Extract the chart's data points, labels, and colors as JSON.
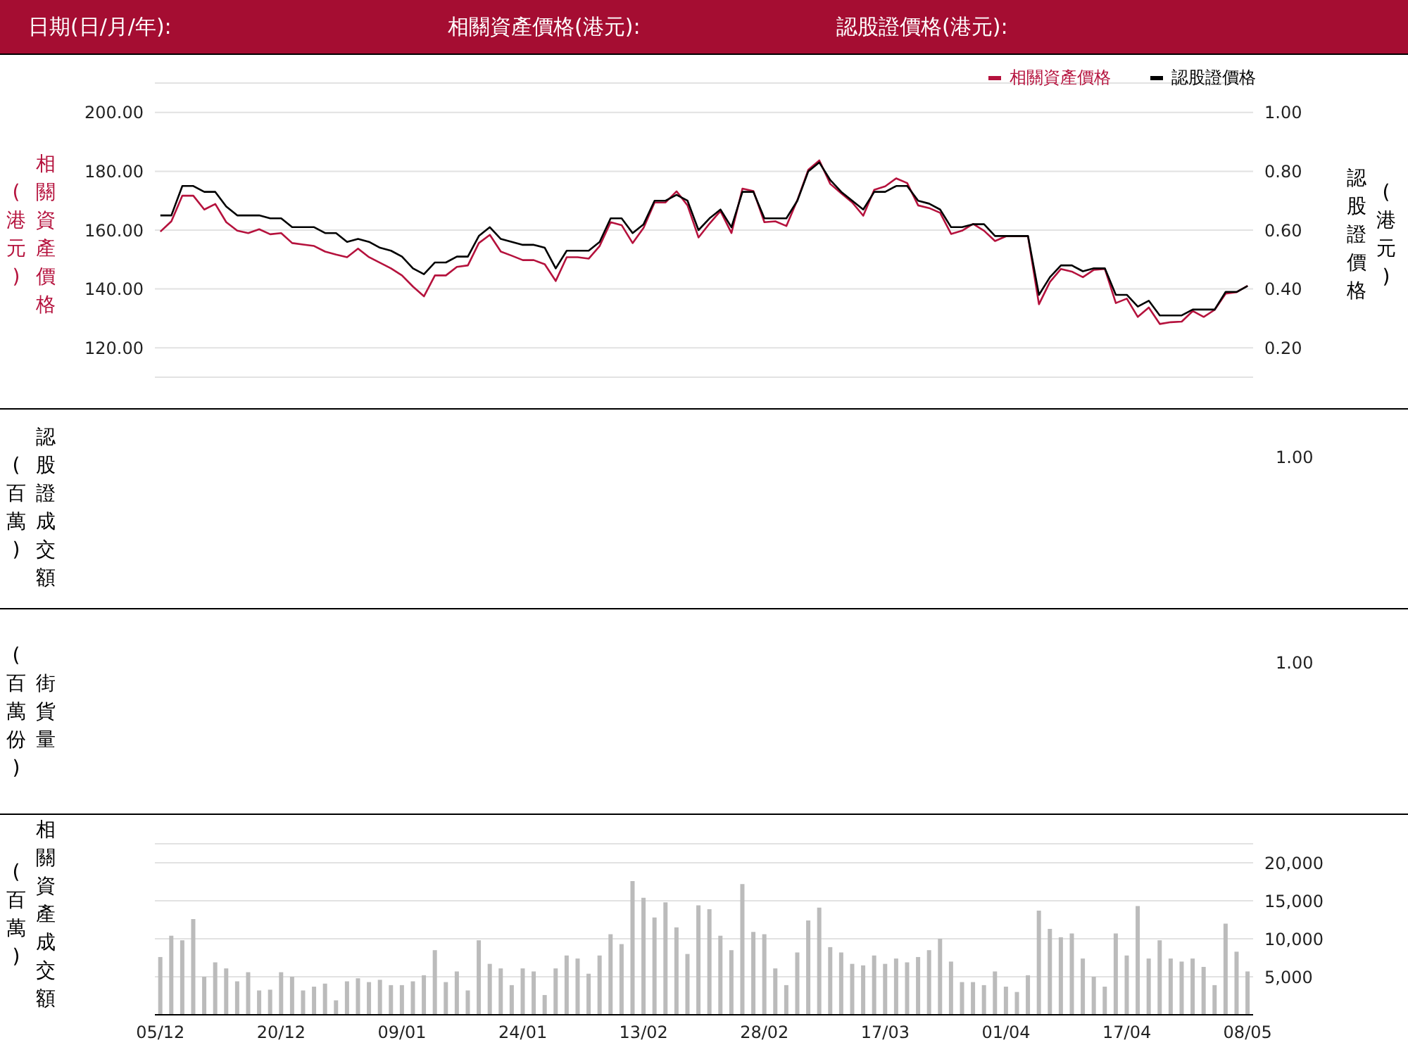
{
  "chart_data": [
    {
      "type": "line",
      "annotations": [
        "日期(日/月/年):",
        "相關資產價格(港元):",
        "認股證價格(港元):"
      ],
      "ylabel": "相關資產價格(港元)",
      "y2label": "認股證價格(港元)",
      "legend": "top right",
      "grid": "y",
      "tick_labels": "y",
      "categories": [
        null,
        null,
        null,
        null,
        null,
        null,
        null,
        null,
        null,
        null,
        null,
        null,
        null,
        null,
        null,
        null,
        null,
        null,
        null,
        null,
        null,
        null,
        null,
        null,
        null,
        null,
        null,
        null,
        null,
        null,
        null,
        null,
        null,
        null,
        null,
        null,
        null,
        null,
        null,
        null,
        null,
        null,
        null,
        null,
        null,
        null,
        null,
        null,
        null,
        null,
        null,
        null,
        null,
        null,
        null,
        null,
        null,
        null,
        null,
        null,
        null,
        null,
        null,
        null,
        null,
        null,
        null,
        null,
        null,
        null,
        null,
        null,
        null,
        null,
        null,
        null,
        null,
        null,
        null,
        null,
        null,
        null,
        null,
        null,
        null,
        null,
        null,
        null,
        null,
        null,
        null,
        null,
        null,
        null,
        null,
        null,
        null,
        null,
        null,
        null
      ],
      "ylim": [
        110,
        210
      ],
      "yticks": [
        {
          "value": 120,
          "label": "120.00"
        },
        {
          "value": 140,
          "label": "140.00"
        },
        {
          "value": 160,
          "label": "160.00"
        },
        {
          "value": 180,
          "label": "180.00"
        },
        {
          "value": 200,
          "label": "200.00"
        }
      ],
      "y2lim": [
        0.1,
        1.1
      ],
      "y2ticks": [
        {
          "value": 0.2,
          "label": "0.20"
        },
        {
          "value": 0.4,
          "label": "0.40"
        },
        {
          "value": 0.6,
          "label": "0.60"
        },
        {
          "value": 0.8,
          "label": "0.80"
        },
        {
          "value": 1,
          "label": "1.00"
        }
      ],
      "series": [
        {
          "name": "相關資產價格",
          "color": "#b5123d",
          "values": [
            159.5,
            163.0,
            171.7,
            171.7,
            167.0,
            168.9,
            162.7,
            159.8,
            159.0,
            160.3,
            158.6,
            159.0,
            155.6,
            155.1,
            154.6,
            152.7,
            151.7,
            150.8,
            153.7,
            150.8,
            148.9,
            147.0,
            144.6,
            140.8,
            137.5,
            144.6,
            144.6,
            147.5,
            148.0,
            155.6,
            158.4,
            152.7,
            151.3,
            149.8,
            149.8,
            148.4,
            142.7,
            150.8,
            150.8,
            150.3,
            154.6,
            162.7,
            161.7,
            155.6,
            160.8,
            169.4,
            169.4,
            173.2,
            168.4,
            157.5,
            162.2,
            166.5,
            159.0,
            174.1,
            173.3,
            162.7,
            163.0,
            161.4,
            170.2,
            180.5,
            183.7,
            175.7,
            172.5,
            169.4,
            164.9,
            173.7,
            174.9,
            177.6,
            176.0,
            168.4,
            167.5,
            165.9,
            158.7,
            159.8,
            162.1,
            159.8,
            156.3,
            157.9,
            157.9,
            157.9,
            134.8,
            142.4,
            146.8,
            145.9,
            144.0,
            146.5,
            146.8,
            135.2,
            136.7,
            130.5,
            133.7,
            128.1,
            128.7,
            128.9,
            132.5,
            130.5,
            132.9,
            138.4,
            138.9,
            141.1
          ]
        },
        {
          "name": "認股證價格",
          "color": "#000000",
          "axis": "y2",
          "values": [
            0.65,
            0.65,
            0.75,
            0.75,
            0.73,
            0.73,
            0.68,
            0.65,
            0.65,
            0.65,
            0.64,
            0.64,
            0.61,
            0.61,
            0.61,
            0.59,
            0.59,
            0.56,
            0.57,
            0.56,
            0.54,
            0.53,
            0.51,
            0.47,
            0.45,
            0.49,
            0.49,
            0.51,
            0.51,
            0.58,
            0.61,
            0.57,
            0.56,
            0.55,
            0.55,
            0.54,
            0.47,
            0.53,
            0.53,
            0.53,
            0.56,
            0.64,
            0.64,
            0.59,
            0.62,
            0.7,
            0.7,
            0.72,
            0.7,
            0.6,
            0.64,
            0.67,
            0.61,
            0.73,
            0.73,
            0.64,
            0.64,
            0.64,
            0.7,
            0.8,
            0.83,
            0.77,
            0.73,
            0.7,
            0.67,
            0.73,
            0.73,
            0.75,
            0.75,
            0.7,
            0.69,
            0.67,
            0.61,
            0.61,
            0.62,
            0.62,
            0.58,
            0.58,
            0.58,
            0.58,
            0.38,
            0.44,
            0.48,
            0.48,
            0.46,
            0.47,
            0.47,
            0.38,
            0.38,
            0.34,
            0.36,
            0.31,
            0.31,
            0.31,
            0.33,
            0.33,
            0.33,
            0.39,
            0.39,
            0.41
          ]
        }
      ]
    },
    {
      "type": "other",
      "ylabel": "認股證成交額(百萬)",
      "annotations": [
        "1.00"
      ]
    },
    {
      "type": "other",
      "ylabel": "街貨量(百萬份)",
      "annotations": [
        "1.00"
      ]
    },
    {
      "type": "bar",
      "ylabel": "相關資產成交額(百萬)",
      "grid": "y",
      "color": "#bbbbbb",
      "ylim": [
        0,
        22500
      ],
      "yticks": [
        {
          "value": 5000,
          "label": "5,000"
        },
        {
          "value": 10000,
          "label": "10,000"
        },
        {
          "value": 15000,
          "label": "15,000"
        },
        {
          "value": 20000,
          "label": "20,000"
        }
      ],
      "categories": [
        "05/12",
        null,
        null,
        null,
        null,
        null,
        null,
        null,
        null,
        null,
        null,
        "20/12",
        null,
        null,
        null,
        null,
        null,
        null,
        null,
        null,
        null,
        null,
        "09/01",
        null,
        null,
        null,
        null,
        null,
        null,
        null,
        null,
        null,
        null,
        "24/01",
        null,
        null,
        null,
        null,
        null,
        null,
        null,
        null,
        null,
        null,
        "13/02",
        null,
        null,
        null,
        null,
        null,
        null,
        null,
        null,
        null,
        null,
        "28/02",
        null,
        null,
        null,
        null,
        null,
        null,
        null,
        null,
        null,
        null,
        "17/03",
        null,
        null,
        null,
        null,
        null,
        null,
        null,
        null,
        null,
        null,
        "01/04",
        null,
        null,
        null,
        null,
        null,
        null,
        null,
        null,
        null,
        null,
        "17/04",
        null,
        null,
        null,
        null,
        null,
        null,
        null,
        null,
        null,
        null,
        "08/05"
      ],
      "values": [
        7600,
        10400,
        9800,
        12600,
        5000,
        6900,
        6100,
        4400,
        5600,
        3200,
        3300,
        5600,
        5000,
        3200,
        3700,
        4100,
        1900,
        4400,
        4800,
        4300,
        4600,
        3900,
        3900,
        4400,
        5200,
        8500,
        4300,
        5700,
        3200,
        9800,
        6700,
        6100,
        3900,
        6100,
        5700,
        2600,
        6100,
        7800,
        7400,
        5400,
        7800,
        10600,
        9300,
        17600,
        15400,
        12800,
        14800,
        11500,
        8000,
        14400,
        13900,
        10400,
        8500,
        17200,
        10900,
        10600,
        6100,
        3900,
        8200,
        12400,
        14100,
        8900,
        8200,
        6700,
        6500,
        7800,
        6700,
        7400,
        6900,
        7600,
        8500,
        10000,
        7000,
        4300,
        4300,
        3900,
        5700,
        3700,
        3000,
        5200,
        13700,
        11300,
        10200,
        10700,
        7400,
        5000,
        3700,
        10700,
        7800,
        14300,
        7400,
        9800,
        7400,
        7000,
        7400,
        6300,
        3900,
        12000,
        8300,
        5700
      ]
    }
  ]
}
